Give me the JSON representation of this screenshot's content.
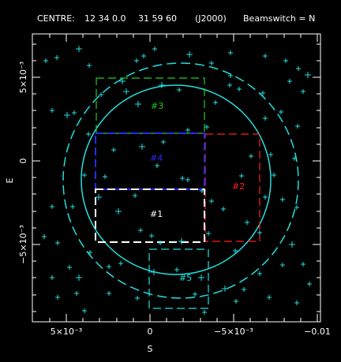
{
  "header": {
    "centre_label": "CENTRE:",
    "ra": "12 34  0.0",
    "dec": "31 59 60",
    "epoch": "(J2000)",
    "beamswitch": "Beamswitch = N"
  },
  "axes": {
    "ylabel": "E",
    "xlabel": "S",
    "x_ticks": [
      "5×10⁻³",
      "0",
      "−5×10⁻³",
      "−0.01"
    ],
    "y_ticks": [
      "5×10⁻³",
      "0",
      "−5×10⁻³"
    ]
  },
  "fields": [
    {
      "label": "#1",
      "color": "#ffffff"
    },
    {
      "label": "#2",
      "color": "#ff2020"
    },
    {
      "label": "#3",
      "color": "#22cc22"
    },
    {
      "label": "#4",
      "color": "#2a2aff"
    },
    {
      "label": "#5",
      "color": "#22e0e0"
    }
  ],
  "colors": {
    "frame": "#ffffff",
    "circles": "#22e0e0",
    "stars": "#22e0e0"
  }
}
